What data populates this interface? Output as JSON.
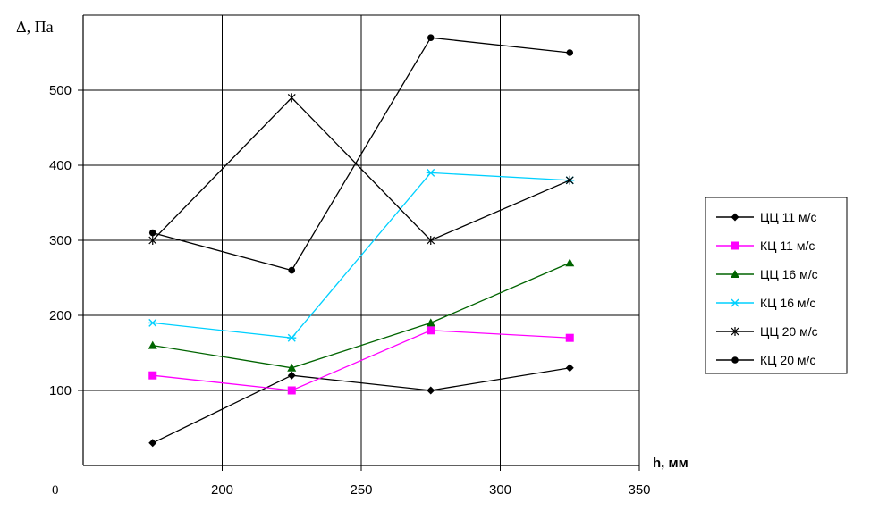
{
  "chart_data": {
    "type": "line",
    "ylabel": "Δ, Па",
    "xlabel": "h, мм",
    "origin_label": "0",
    "x_ticks": [
      "200",
      "250",
      "300",
      "350"
    ],
    "y_ticks": [
      "100",
      "200",
      "300",
      "400",
      "500"
    ],
    "xlim": [
      150,
      350
    ],
    "ylim": [
      0,
      600
    ],
    "grid": true,
    "legend_position": "right",
    "x": [
      175,
      225,
      275,
      325
    ],
    "series": [
      {
        "name": "ЦЦ 11 м/с",
        "values": [
          30,
          120,
          100,
          130
        ],
        "color": "#000000",
        "marker": "diamond"
      },
      {
        "name": "КЦ 11 м/с",
        "values": [
          120,
          100,
          180,
          170
        ],
        "color": "#ff00ff",
        "marker": "square"
      },
      {
        "name": "ЦЦ 16 м/с",
        "values": [
          160,
          130,
          190,
          270
        ],
        "color": "#006400",
        "marker": "triangle"
      },
      {
        "name": "КЦ 16 м/с",
        "values": [
          190,
          170,
          390,
          380
        ],
        "color": "#00d0ff",
        "marker": "star"
      },
      {
        "name": "ЦЦ 20 м/с",
        "values": [
          300,
          490,
          300,
          380
        ],
        "color": "#000000",
        "marker": "cross"
      },
      {
        "name": "КЦ 20 м/с",
        "values": [
          310,
          260,
          570,
          550
        ],
        "color": "#000000",
        "marker": "circle"
      }
    ]
  }
}
